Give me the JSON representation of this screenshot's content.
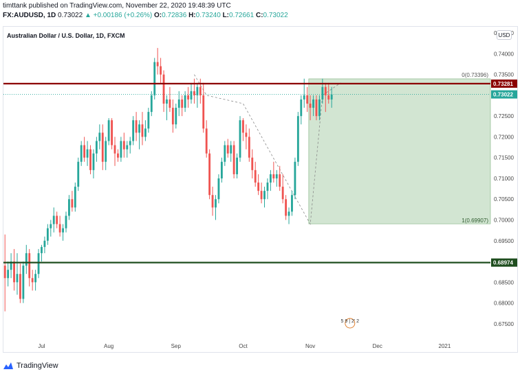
{
  "header": {
    "line1": "timttank published on TradingView.com, November 22, 2020 19:48:39 UTC",
    "symbol": "FX:AUDUSD, 1D",
    "last": "0.73022",
    "change": "▲ +0.00186 (+0.26%)",
    "o_label": "O:",
    "o_value": "0.72836",
    "h_label": "H:",
    "h_value": "0.73240",
    "l_label": "L:",
    "l_value": "0.72661",
    "c_label": "C:",
    "c_value": "0.73022"
  },
  "legend_title": "Australian Dollar / U.S. Dollar, 1D, FXCM",
  "currency_button": "USD",
  "branding": "TradingView",
  "colors": {
    "up": "#26a69a",
    "down": "#ef5350",
    "resistance": "#8b0000",
    "support": "#1e4d1e",
    "zone": "#c7dfc7",
    "current": "#26a69a"
  },
  "chart_data": {
    "type": "candlestick",
    "title": "Australian Dollar / U.S. Dollar, 1D, FXCM",
    "ylim": [
      0.6725,
      0.7465
    ],
    "y_ticks": [
      "0.74500",
      "0.74000",
      "0.73500",
      "0.73000",
      "0.72500",
      "0.72000",
      "0.71500",
      "0.71000",
      "0.70500",
      "0.70000",
      "0.69500",
      "0.69000",
      "0.68500",
      "0.68000",
      "0.67500"
    ],
    "x_ticks": [
      "Jul",
      "Aug",
      "Sep",
      "Oct",
      "Nov",
      "Dec",
      "2021"
    ],
    "x_tick_index": [
      12,
      34,
      56,
      78,
      100,
      122,
      144
    ],
    "x_range": [
      -0.5,
      159
    ],
    "candles": [
      [
        0.689,
        0.6965,
        0.678,
        0.686
      ],
      [
        0.686,
        0.69,
        0.684,
        0.688
      ],
      [
        0.688,
        0.692,
        0.686,
        0.69
      ],
      [
        0.69,
        0.693,
        0.683,
        0.685
      ],
      [
        0.685,
        0.692,
        0.682,
        0.687
      ],
      [
        0.687,
        0.6895,
        0.68,
        0.681
      ],
      [
        0.681,
        0.69,
        0.68,
        0.689
      ],
      [
        0.689,
        0.694,
        0.687,
        0.692
      ],
      [
        0.692,
        0.693,
        0.684,
        0.686
      ],
      [
        0.686,
        0.688,
        0.683,
        0.685
      ],
      [
        0.685,
        0.688,
        0.683,
        0.687
      ],
      [
        0.687,
        0.693,
        0.686,
        0.692
      ],
      [
        0.692,
        0.694,
        0.69,
        0.6935
      ],
      [
        0.6935,
        0.696,
        0.692,
        0.695
      ],
      [
        0.695,
        0.699,
        0.694,
        0.698
      ],
      [
        0.698,
        0.7,
        0.696,
        0.699
      ],
      [
        0.699,
        0.703,
        0.697,
        0.701
      ],
      [
        0.701,
        0.702,
        0.698,
        0.699
      ],
      [
        0.699,
        0.701,
        0.696,
        0.697
      ],
      [
        0.697,
        0.699,
        0.695,
        0.698
      ],
      [
        0.698,
        0.702,
        0.697,
        0.701
      ],
      [
        0.701,
        0.706,
        0.7,
        0.705
      ],
      [
        0.705,
        0.707,
        0.702,
        0.703
      ],
      [
        0.703,
        0.709,
        0.702,
        0.708
      ],
      [
        0.708,
        0.715,
        0.707,
        0.714
      ],
      [
        0.714,
        0.719,
        0.713,
        0.718
      ],
      [
        0.718,
        0.72,
        0.714,
        0.715
      ],
      [
        0.715,
        0.719,
        0.713,
        0.717
      ],
      [
        0.717,
        0.718,
        0.711,
        0.712
      ],
      [
        0.712,
        0.717,
        0.71,
        0.716
      ],
      [
        0.716,
        0.72,
        0.714,
        0.719
      ],
      [
        0.719,
        0.723,
        0.717,
        0.721
      ],
      [
        0.721,
        0.723,
        0.712,
        0.714
      ],
      [
        0.714,
        0.72,
        0.712,
        0.719
      ],
      [
        0.719,
        0.7245,
        0.718,
        0.724
      ],
      [
        0.724,
        0.7245,
        0.717,
        0.718
      ],
      [
        0.718,
        0.72,
        0.713,
        0.716
      ],
      [
        0.716,
        0.717,
        0.714,
        0.715
      ],
      [
        0.715,
        0.72,
        0.714,
        0.719
      ],
      [
        0.719,
        0.721,
        0.715,
        0.717
      ],
      [
        0.717,
        0.719,
        0.715,
        0.718
      ],
      [
        0.718,
        0.72,
        0.716,
        0.719
      ],
      [
        0.719,
        0.725,
        0.718,
        0.724
      ],
      [
        0.724,
        0.726,
        0.719,
        0.721
      ],
      [
        0.721,
        0.724,
        0.717,
        0.723
      ],
      [
        0.723,
        0.726,
        0.718,
        0.72
      ],
      [
        0.72,
        0.724,
        0.719,
        0.722
      ],
      [
        0.722,
        0.727,
        0.721,
        0.726
      ],
      [
        0.726,
        0.731,
        0.725,
        0.73
      ],
      [
        0.73,
        0.739,
        0.729,
        0.738
      ],
      [
        0.738,
        0.7414,
        0.735,
        0.737
      ],
      [
        0.737,
        0.739,
        0.733,
        0.735
      ],
      [
        0.735,
        0.736,
        0.726,
        0.728
      ],
      [
        0.728,
        0.73,
        0.724,
        0.729
      ],
      [
        0.729,
        0.732,
        0.726,
        0.727
      ],
      [
        0.727,
        0.729,
        0.721,
        0.723
      ],
      [
        0.723,
        0.728,
        0.722,
        0.727
      ],
      [
        0.727,
        0.731,
        0.725,
        0.729
      ],
      [
        0.729,
        0.73,
        0.725,
        0.727
      ],
      [
        0.727,
        0.731,
        0.726,
        0.73
      ],
      [
        0.73,
        0.732,
        0.727,
        0.729
      ],
      [
        0.729,
        0.733,
        0.728,
        0.731
      ],
      [
        0.731,
        0.734,
        0.728,
        0.73
      ],
      [
        0.73,
        0.733,
        0.727,
        0.732
      ],
      [
        0.732,
        0.734,
        0.728,
        0.73
      ],
      [
        0.73,
        0.733,
        0.721,
        0.722
      ],
      [
        0.722,
        0.724,
        0.715,
        0.716
      ],
      [
        0.716,
        0.717,
        0.705,
        0.706
      ],
      [
        0.706,
        0.708,
        0.701,
        0.703
      ],
      [
        0.703,
        0.706,
        0.7,
        0.705
      ],
      [
        0.705,
        0.711,
        0.704,
        0.71
      ],
      [
        0.71,
        0.715,
        0.709,
        0.714
      ],
      [
        0.714,
        0.719,
        0.713,
        0.718
      ],
      [
        0.718,
        0.7195,
        0.715,
        0.716
      ],
      [
        0.716,
        0.719,
        0.714,
        0.718
      ],
      [
        0.718,
        0.719,
        0.71,
        0.711
      ],
      [
        0.711,
        0.716,
        0.71,
        0.715
      ],
      [
        0.715,
        0.725,
        0.714,
        0.724
      ],
      [
        0.724,
        0.7245,
        0.719,
        0.721
      ],
      [
        0.721,
        0.723,
        0.717,
        0.72
      ],
      [
        0.72,
        0.722,
        0.714,
        0.715
      ],
      [
        0.715,
        0.717,
        0.71,
        0.712
      ],
      [
        0.712,
        0.714,
        0.708,
        0.709
      ],
      [
        0.709,
        0.711,
        0.706,
        0.707
      ],
      [
        0.707,
        0.709,
        0.704,
        0.705
      ],
      [
        0.705,
        0.708,
        0.703,
        0.707
      ],
      [
        0.707,
        0.71,
        0.705,
        0.709
      ],
      [
        0.709,
        0.712,
        0.707,
        0.711
      ],
      [
        0.711,
        0.714,
        0.709,
        0.71
      ],
      [
        0.71,
        0.712,
        0.708,
        0.711
      ],
      [
        0.711,
        0.713,
        0.707,
        0.708
      ],
      [
        0.708,
        0.711,
        0.704,
        0.705
      ],
      [
        0.705,
        0.706,
        0.7,
        0.701
      ],
      [
        0.701,
        0.703,
        0.699,
        0.702
      ],
      [
        0.702,
        0.707,
        0.701,
        0.706
      ],
      [
        0.706,
        0.715,
        0.705,
        0.714
      ],
      [
        0.714,
        0.726,
        0.713,
        0.725
      ],
      [
        0.725,
        0.73,
        0.723,
        0.729
      ],
      [
        0.729,
        0.734,
        0.727,
        0.73
      ],
      [
        0.73,
        0.732,
        0.726,
        0.728
      ],
      [
        0.728,
        0.73,
        0.724,
        0.727
      ],
      [
        0.727,
        0.73,
        0.725,
        0.729
      ],
      [
        0.729,
        0.73,
        0.724,
        0.725
      ],
      [
        0.725,
        0.73,
        0.724,
        0.729
      ],
      [
        0.729,
        0.734,
        0.728,
        0.732
      ],
      [
        0.732,
        0.733,
        0.726,
        0.73
      ],
      [
        0.73,
        0.733,
        0.728,
        0.729
      ],
      [
        0.729,
        0.732,
        0.727,
        0.7302
      ]
    ],
    "resistance": 0.73281,
    "support": 0.68974,
    "current_price": 0.73022,
    "fib_zone": {
      "top_label": "0(0.73396)",
      "top": 0.73396,
      "bottom_label": "1(0.69907)",
      "bottom": 0.69907,
      "start_index": 100
    },
    "labels": {
      "resistance": "0.73281",
      "current": "0.73022",
      "support": "0.68974"
    },
    "dashed_path": [
      [
        62,
        0.735
      ],
      [
        66,
        0.73
      ],
      [
        78,
        0.728
      ],
      [
        100,
        0.699
      ],
      [
        104,
        0.73
      ],
      [
        110,
        0.733
      ]
    ],
    "event_marker": "5 9 | 2' 2"
  }
}
